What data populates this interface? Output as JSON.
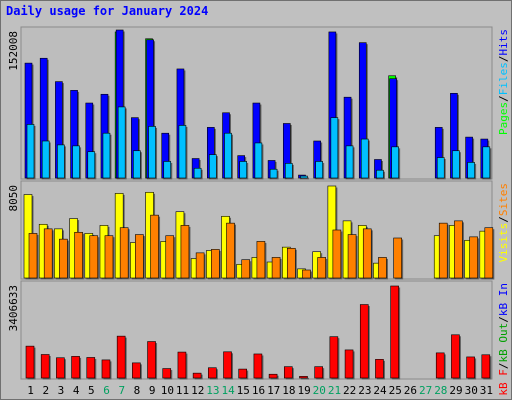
{
  "title": "Daily usage for January 2024",
  "colors": {
    "background": "#c0c0c0",
    "panel": "#bdbdbd",
    "hits": "#0000ff",
    "files": "#00c0ff",
    "pages": "#00ff00",
    "visits": "#ffff00",
    "sites": "#ff8000",
    "kb_in": "#0000ff",
    "kb_out": "#00a000",
    "kb_f": "#ff0000",
    "weekend_day": "#00a060",
    "weekday": "#000000"
  },
  "chart_data": [
    {
      "type": "bar",
      "ymax_label": "152008",
      "right_labels": [
        "Pages",
        "/",
        "Files",
        "/",
        "Hits"
      ],
      "x": [
        1,
        2,
        3,
        4,
        5,
        6,
        7,
        8,
        9,
        10,
        11,
        12,
        13,
        14,
        15,
        16,
        17,
        18,
        19,
        20,
        21,
        22,
        23,
        24,
        25,
        26,
        27,
        28,
        29,
        30,
        31
      ],
      "series": [
        {
          "name": "Hits",
          "values": [
            118000,
            123000,
            99000,
            90000,
            77000,
            86000,
            152008,
            62000,
            142000,
            46000,
            112000,
            20000,
            52000,
            67000,
            23000,
            77000,
            18000,
            56000,
            3000,
            38000,
            150000,
            83000,
            139000,
            19000,
            102000,
            0,
            0,
            52000,
            87000,
            42000,
            40000
          ]
        },
        {
          "name": "Files",
          "values": [
            55000,
            38000,
            34000,
            33000,
            27000,
            46000,
            73000,
            28000,
            53000,
            17000,
            54000,
            10000,
            24000,
            46000,
            17000,
            36000,
            9000,
            15000,
            2000,
            17000,
            62000,
            33000,
            40000,
            8000,
            32000,
            0,
            0,
            21000,
            28000,
            16000,
            32000
          ]
        },
        {
          "name": "Pages",
          "values": [
            0,
            0,
            0,
            0,
            0,
            0,
            150000,
            0,
            143000,
            0,
            0,
            0,
            0,
            0,
            0,
            0,
            0,
            0,
            0,
            0,
            0,
            0,
            0,
            0,
            105000,
            0,
            0,
            0,
            0,
            0,
            0
          ]
        }
      ]
    },
    {
      "type": "bar",
      "ymax_label": "8050",
      "right_labels": [
        "Visits",
        "/",
        "Sites"
      ],
      "x": [
        1,
        2,
        3,
        4,
        5,
        6,
        7,
        8,
        9,
        10,
        11,
        12,
        13,
        14,
        15,
        16,
        17,
        18,
        19,
        20,
        21,
        22,
        23,
        24,
        25,
        26,
        27,
        28,
        29,
        30,
        31
      ],
      "series": [
        {
          "name": "Visits",
          "values": [
            7300,
            4700,
            4300,
            5200,
            3900,
            4600,
            7400,
            3100,
            7500,
            3200,
            5800,
            1700,
            2400,
            5400,
            1200,
            1800,
            1400,
            2700,
            800,
            2300,
            8050,
            5000,
            4600,
            1300,
            0,
            0,
            0,
            3700,
            4600,
            3300,
            4100
          ]
        },
        {
          "name": "Sites",
          "values": [
            3900,
            4300,
            3400,
            4000,
            3700,
            3700,
            4400,
            3800,
            5500,
            3700,
            4600,
            2200,
            2500,
            4800,
            1600,
            3200,
            1800,
            2600,
            700,
            1800,
            4200,
            3800,
            4300,
            1800,
            3500,
            0,
            0,
            4800,
            5000,
            3600,
            4400
          ]
        }
      ]
    },
    {
      "type": "bar",
      "ymax_label": "3406633",
      "right_labels": [
        "kB F",
        "/",
        "kB Out",
        "/",
        "kB In"
      ],
      "x": [
        1,
        2,
        3,
        4,
        5,
        6,
        7,
        8,
        9,
        10,
        11,
        12,
        13,
        14,
        15,
        16,
        17,
        18,
        19,
        20,
        21,
        22,
        23,
        24,
        25,
        26,
        27,
        28,
        29,
        30,
        31
      ],
      "series": [
        {
          "name": "kB F",
          "values": [
            1180000,
            870000,
            750000,
            800000,
            760000,
            670000,
            1550000,
            560000,
            1350000,
            350000,
            960000,
            180000,
            380000,
            970000,
            330000,
            890000,
            140000,
            420000,
            60000,
            420000,
            1530000,
            1040000,
            2720000,
            690000,
            3406633,
            0,
            0,
            930000,
            1600000,
            780000,
            860000
          ]
        }
      ]
    }
  ],
  "x_tick_labels": [
    "1",
    "2",
    "3",
    "4",
    "5",
    "6",
    "7",
    "8",
    "9",
    "10",
    "11",
    "12",
    "13",
    "14",
    "15",
    "16",
    "17",
    "18",
    "19",
    "20",
    "21",
    "22",
    "23",
    "24",
    "25",
    "26",
    "27",
    "28",
    "29",
    "30",
    "31"
  ],
  "weekend_days": [
    6,
    7,
    13,
    14,
    20,
    21,
    27,
    28
  ]
}
